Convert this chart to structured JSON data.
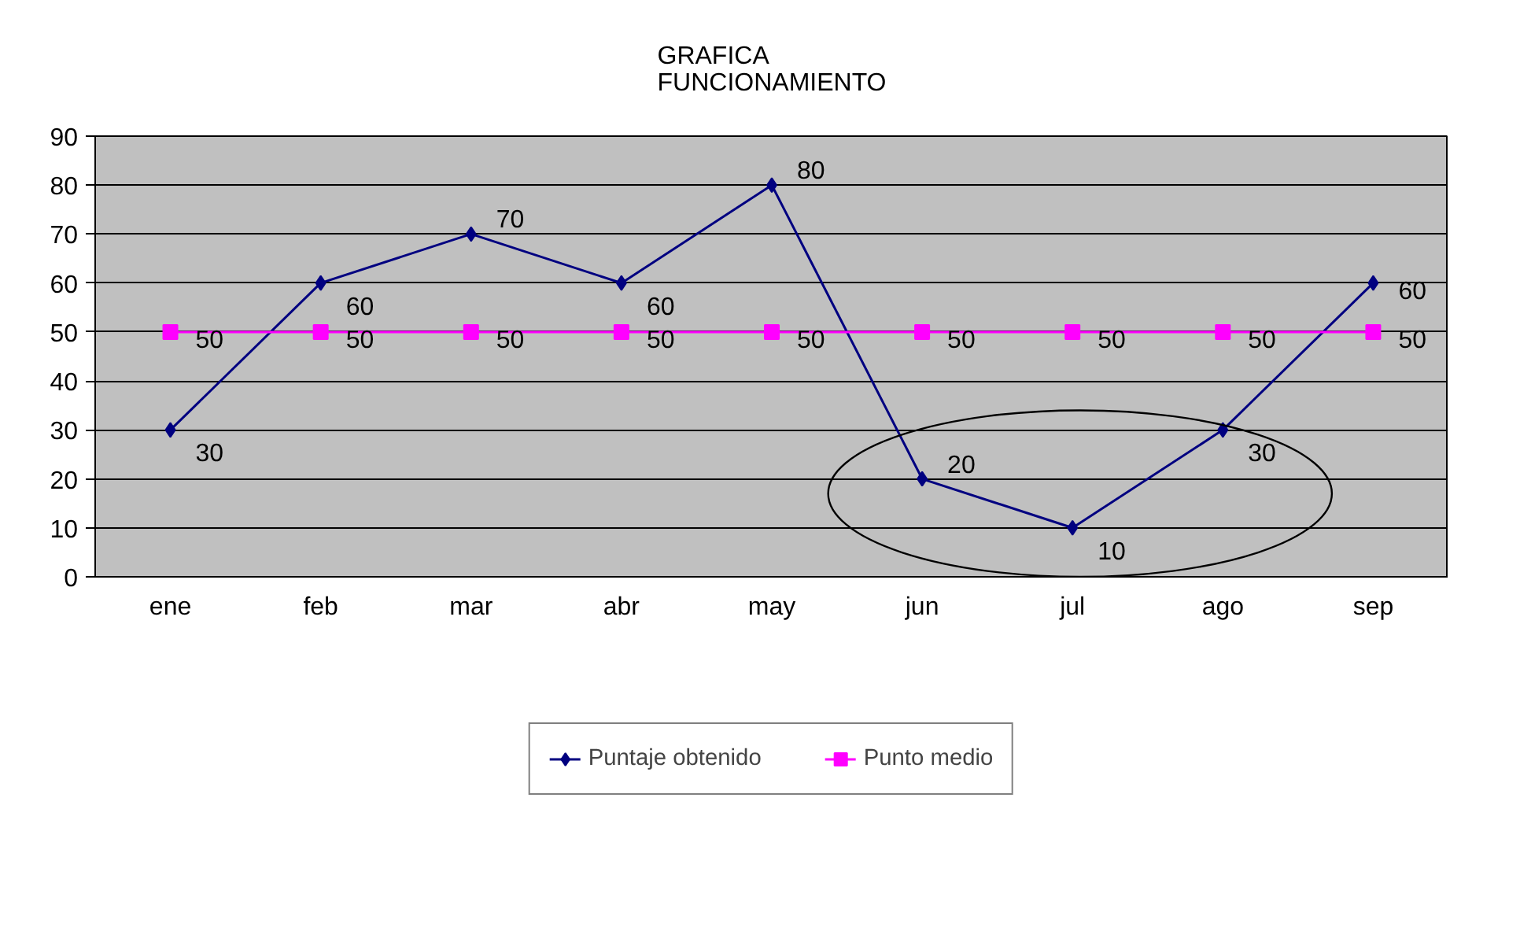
{
  "chart_data": {
    "type": "line",
    "title": "GRAFICA\nFUNCIONAMIENTO",
    "categories": [
      "ene",
      "feb",
      "mar",
      "abr",
      "may",
      "jun",
      "jul",
      "ago",
      "sep"
    ],
    "series": [
      {
        "name": "Puntaje obtenido",
        "color": "#000080",
        "marker": "diamond",
        "values": [
          30,
          60,
          70,
          60,
          80,
          20,
          10,
          30,
          60
        ]
      },
      {
        "name": "Punto medio",
        "color": "#ff00ff",
        "marker": "square",
        "values": [
          50,
          50,
          50,
          50,
          50,
          50,
          50,
          50,
          50
        ]
      }
    ],
    "ylim": [
      0,
      90
    ],
    "yticks": [
      0,
      10,
      20,
      30,
      40,
      50,
      60,
      70,
      80,
      90
    ],
    "grid": "y",
    "legend": "bottom",
    "data_labels": true,
    "line_style": "solid"
  }
}
